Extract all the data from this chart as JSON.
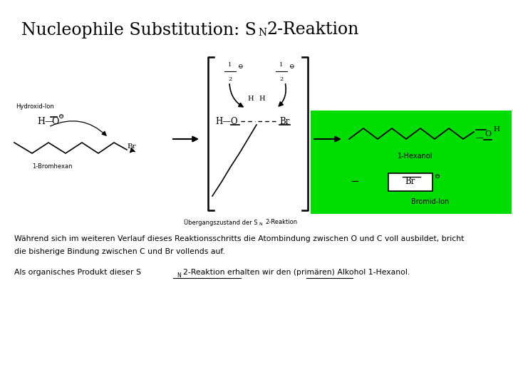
{
  "bg_color": "#ffffff",
  "green_box_color": "#00dd00",
  "title_parts": [
    "Nucleophile Substitution: S",
    "N",
    "2-Reaktion"
  ],
  "paragraph1_line1": "Während sich im weiteren Verlauf dieses Reaktionsschritts die Atombindung zwischen O und C voll ausbildet, bricht",
  "paragraph1_line2": "die bisherige Bindung zwischen C und Br vollends auf.",
  "paragraph2_pre": "Als organisches Produkt dieser S",
  "paragraph2_sub": "N",
  "paragraph2_post": "2-Reaktion erhalten wir den (primären) Alkohol 1-Hexanol.",
  "label_1hexanol": "1-Hexanol",
  "label_bromid": "Bromid-Ion",
  "label_1bromhexan": "1-Bromhexan",
  "label_hydroxid": "Hydroxid-Ion",
  "caption_pre": "Übergangszustand der S",
  "caption_sub": "N",
  "caption_post": "2-Reaktion"
}
